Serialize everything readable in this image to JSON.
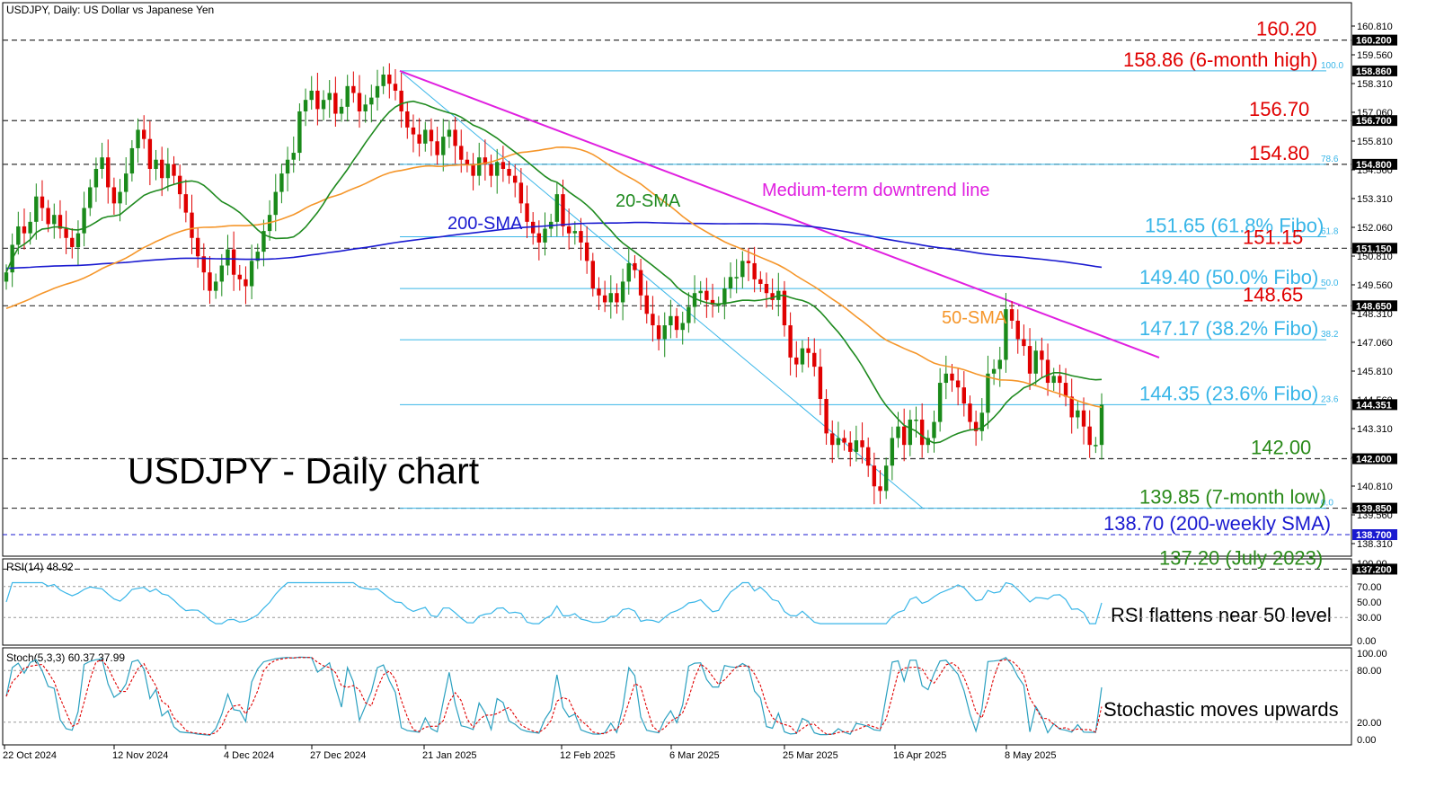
{
  "header": {
    "symbol_line": "USDJPY, Daily:  US Dollar vs Japanese Yen"
  },
  "main_title": "USDJPY - Daily chart",
  "colors": {
    "bull": "#1a8a1a",
    "bear": "#e00000",
    "sma20": "#1f8a1f",
    "sma50": "#f5962a",
    "sma200": "#1a1ad0",
    "trendline": "#e020e0",
    "fibo": "#39b6e8",
    "level_red": "#e00000",
    "level_green": "#2a8a1a",
    "level_blue": "#1a1ad0"
  },
  "chart_data": [
    {
      "type": "candlestick",
      "panel": "price",
      "ylim": [
        136.8,
        161.2
      ],
      "x_ticks": [
        "22 Oct 2024",
        "12 Nov 2024",
        "4 Dec 2024",
        "27 Dec 2024",
        "21 Jan 2025",
        "12 Feb 2025",
        "6 Mar 2025",
        "25 Mar 2025",
        "16 Apr 2025",
        "8 May 2025"
      ],
      "y_ticks": [
        "160.810",
        "159.560",
        "158.310",
        "157.060",
        "155.810",
        "154.560",
        "153.310",
        "152.060",
        "150.810",
        "149.560",
        "148.310",
        "147.060",
        "145.810",
        "144.560",
        "143.310",
        "142.060",
        "140.810",
        "139.560",
        "138.310"
      ],
      "price_tags": [
        {
          "label": "160.200",
          "value": 160.2,
          "bg": "#000000"
        },
        {
          "label": "158.860",
          "value": 158.86,
          "bg": "#000000"
        },
        {
          "label": "156.700",
          "value": 156.7,
          "bg": "#000000"
        },
        {
          "label": "154.800",
          "value": 154.8,
          "bg": "#000000"
        },
        {
          "label": "151.150",
          "value": 151.15,
          "bg": "#000000"
        },
        {
          "label": "148.650",
          "value": 148.65,
          "bg": "#000000"
        },
        {
          "label": "144.351",
          "value": 144.351,
          "bg": "#000000"
        },
        {
          "label": "142.000",
          "value": 142.0,
          "bg": "#000000"
        },
        {
          "label": "139.850",
          "value": 139.85,
          "bg": "#000000"
        },
        {
          "label": "138.700",
          "value": 138.7,
          "bg": "#1a1ad0"
        },
        {
          "label": "137.200",
          "value": 137.2,
          "bg": "#000000"
        }
      ],
      "horizontal_levels": [
        {
          "value": 160.2,
          "style": "dash",
          "label": "160.20",
          "color": "#e00000"
        },
        {
          "value": 158.86,
          "style": "fibo",
          "label": "158.86 (6-month high)",
          "color": "#e00000",
          "fibo_tag": "100.0"
        },
        {
          "value": 156.7,
          "style": "dash",
          "label": "156.70",
          "color": "#e00000"
        },
        {
          "value": 154.8,
          "style": "dash+fibo",
          "label": "154.80",
          "color": "#e00000",
          "fibo_tag": "78.6"
        },
        {
          "value": 151.65,
          "style": "fibo",
          "label": "151.65 (61.8% Fibo)",
          "color": "#39b6e8",
          "fibo_tag": "61.8"
        },
        {
          "value": 151.15,
          "style": "dash",
          "label": "151.15",
          "color": "#e00000"
        },
        {
          "value": 149.4,
          "style": "fibo",
          "label": "149.40 (50.0% Fibo)",
          "color": "#39b6e8",
          "fibo_tag": "50.0"
        },
        {
          "value": 148.65,
          "style": "dash",
          "label": "148.65",
          "color": "#e00000"
        },
        {
          "value": 147.17,
          "style": "fibo",
          "label": "147.17 (38.2% Fibo)",
          "color": "#39b6e8",
          "fibo_tag": "38.2"
        },
        {
          "value": 144.35,
          "style": "fibo",
          "label": "144.35 (23.6% Fibo)",
          "color": "#39b6e8",
          "fibo_tag": "23.6"
        },
        {
          "value": 142.0,
          "style": "dash",
          "label": "142.00",
          "color": "#2a8a1a"
        },
        {
          "value": 139.85,
          "style": "dash+fibo",
          "label": "139.85 (7-month low)",
          "color": "#2a8a1a",
          "fibo_tag": "0.0"
        },
        {
          "value": 138.7,
          "style": "bluedash",
          "label": "138.70 (200-weekly SMA)",
          "color": "#1a1ad0"
        },
        {
          "value": 137.2,
          "style": "dash",
          "label": "137.20 (July 2023)",
          "color": "#2a8a1a"
        }
      ],
      "annotations": [
        {
          "text": "20-SMA",
          "color": "#1f8a1f"
        },
        {
          "text": "200-SMA",
          "color": "#1a1ad0"
        },
        {
          "text": "50-SMA",
          "color": "#f5962a"
        },
        {
          "text": "Medium-term downtrend line",
          "color": "#e020e0"
        }
      ],
      "candles_close": [
        150.1,
        151.3,
        152.1,
        151.8,
        152.3,
        153.4,
        152.9,
        152.2,
        152.6,
        152.0,
        151.6,
        151.2,
        151.8,
        152.9,
        153.8,
        154.6,
        155.1,
        153.8,
        153.1,
        153.6,
        154.4,
        155.5,
        156.3,
        155.9,
        154.6,
        155.0,
        154.2,
        154.8,
        154.3,
        153.5,
        152.7,
        151.6,
        150.8,
        150.1,
        149.3,
        149.7,
        150.4,
        151.1,
        150.0,
        149.8,
        149.5,
        150.6,
        151.0,
        151.9,
        152.6,
        153.6,
        154.4,
        155.0,
        155.3,
        157.1,
        157.6,
        158.0,
        157.2,
        157.6,
        157.9,
        157.0,
        157.3,
        158.2,
        157.9,
        157.1,
        157.4,
        157.7,
        158.2,
        158.7,
        158.3,
        158.0,
        157.1,
        156.4,
        156.1,
        155.7,
        156.3,
        155.8,
        155.2,
        156.0,
        156.3,
        155.6,
        155.0,
        154.8,
        154.3,
        155.1,
        154.8,
        154.3,
        154.9,
        154.6,
        154.3,
        154.0,
        153.1,
        152.3,
        151.8,
        151.4,
        152.0,
        152.3,
        153.5,
        152.1,
        151.8,
        151.9,
        151.4,
        150.6,
        149.4,
        149.1,
        148.8,
        149.2,
        148.8,
        149.7,
        150.5,
        150.2,
        149.1,
        148.3,
        147.8,
        147.2,
        147.8,
        148.2,
        147.6,
        147.9,
        148.6,
        149.2,
        149.3,
        148.9,
        148.7,
        148.7,
        149.4,
        149.9,
        149.9,
        150.6,
        150.5,
        149.8,
        149.6,
        149.2,
        148.9,
        149.3,
        147.8,
        146.4,
        146.1,
        146.8,
        146.6,
        146.0,
        144.6,
        143.1,
        142.6,
        142.9,
        142.7,
        142.3,
        142.8,
        142.5,
        141.7,
        140.8,
        140.6,
        141.7,
        142.9,
        143.4,
        142.6,
        143.7,
        143.7,
        142.6,
        142.9,
        143.6,
        145.3,
        145.7,
        145.4,
        145.1,
        144.4,
        143.6,
        143.2,
        144.0,
        145.7,
        145.9,
        146.3,
        148.5,
        148.0,
        147.2,
        146.9,
        145.7,
        146.7,
        146.3,
        145.3,
        145.6,
        145.3,
        144.7,
        143.8,
        144.1,
        143.4,
        142.6,
        142.6,
        144.35
      ],
      "sma20_text": "SMA 20",
      "sma50_text": "SMA 50",
      "sma200_text": "SMA 200"
    },
    {
      "type": "line",
      "panel": "rsi",
      "label": "RSI(14) 48.92",
      "ylim": [
        0,
        100
      ],
      "y_ticks": [
        "100.00",
        "70.00",
        "50.00",
        "30.00",
        "0.00"
      ],
      "levels": [
        30,
        70
      ],
      "annotation": "RSI flattens near 50 level"
    },
    {
      "type": "line",
      "panel": "stoch",
      "label": "Stoch(5,3,3) 60.37 37.99",
      "ylim": [
        0,
        100
      ],
      "y_ticks": [
        "100.00",
        "80.00",
        "20.00",
        "0.00"
      ],
      "levels": [
        20,
        80
      ],
      "annotation": "Stochastic moves upwards"
    }
  ]
}
